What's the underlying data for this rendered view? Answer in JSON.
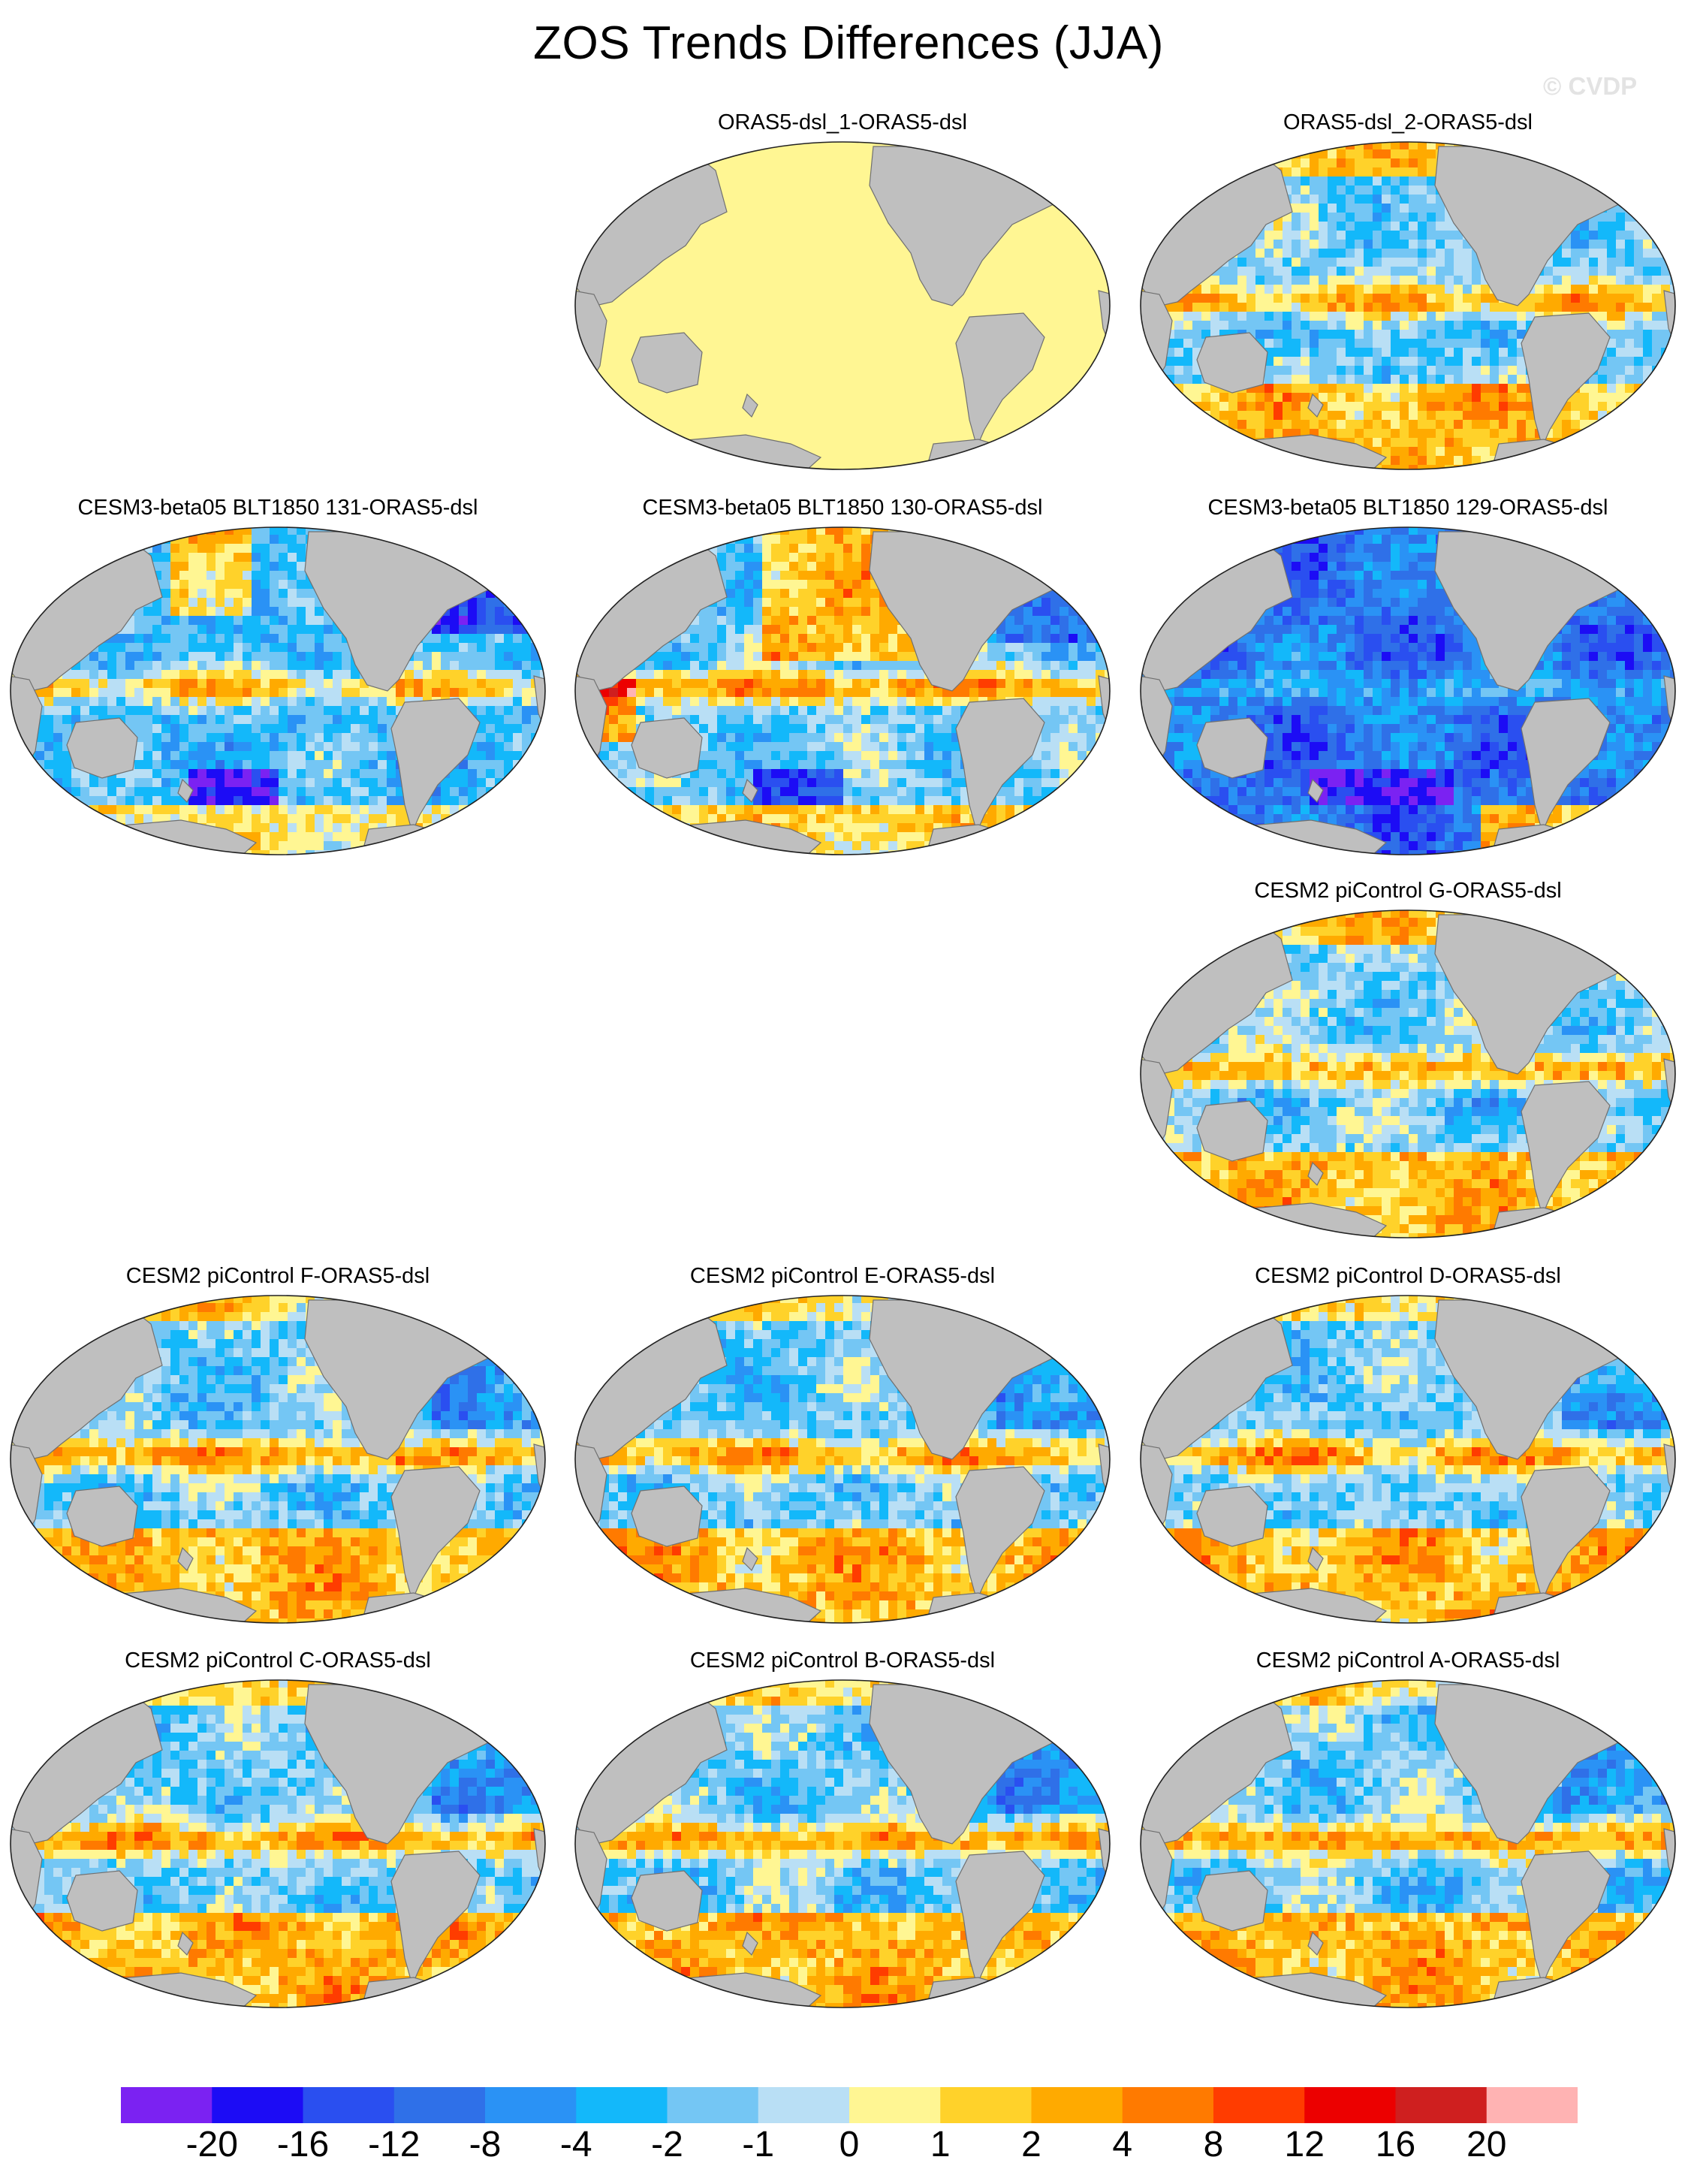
{
  "figure": {
    "title": "ZOS Trends Differences (JJA)",
    "watermark": "© CVDP"
  },
  "panels": [
    {
      "title": "ORAS5-dsl_1-ORAS5-dsl",
      "pattern": "uniform-zero"
    },
    {
      "title": "ORAS5-dsl_2-ORAS5-dsl",
      "pattern": "mixed"
    },
    {
      "title": "CESM3-beta05 BLT1850 131-ORAS5-dsl",
      "pattern": "mixed-cool"
    },
    {
      "title": "CESM3-beta05 BLT1850 130-ORAS5-dsl",
      "pattern": "mixed-warm-north"
    },
    {
      "title": "CESM3-beta05 BLT1850 129-ORAS5-dsl",
      "pattern": "mostly-negative"
    },
    {
      "title": "CESM2 piControl G-ORAS5-dsl",
      "pattern": "mixed"
    },
    {
      "title": "CESM2 piControl F-ORAS5-dsl",
      "pattern": "mixed-warm-south"
    },
    {
      "title": "CESM2 piControl E-ORAS5-dsl",
      "pattern": "mixed-warm-south"
    },
    {
      "title": "CESM2 piControl D-ORAS5-dsl",
      "pattern": "mixed-warm-south"
    },
    {
      "title": "CESM2 piControl C-ORAS5-dsl",
      "pattern": "mixed-warm-south"
    },
    {
      "title": "CESM2 piControl B-ORAS5-dsl",
      "pattern": "mixed-warm-south"
    },
    {
      "title": "CESM2 piControl A-ORAS5-dsl",
      "pattern": "mixed-warm-south"
    }
  ],
  "colorbar": {
    "labels": [
      "-20",
      "-16",
      "-12",
      "-8",
      "-4",
      "-2",
      "-1",
      "0",
      "1",
      "2",
      "4",
      "8",
      "12",
      "16",
      "20"
    ],
    "colors": [
      "#7b22f2",
      "#1c0cf5",
      "#2a4ff0",
      "#2f70e8",
      "#2a92f5",
      "#13b8fa",
      "#74c6f4",
      "#b9dff5",
      "#fff693",
      "#ffd22a",
      "#ffaa00",
      "#ff7a00",
      "#ff3c00",
      "#ec0000",
      "#cf1f1f",
      "#ffb3b3"
    ]
  },
  "colors": {
    "land": "#bfbfbf",
    "coast": "#707070",
    "zero_fill": "#fff693"
  }
}
